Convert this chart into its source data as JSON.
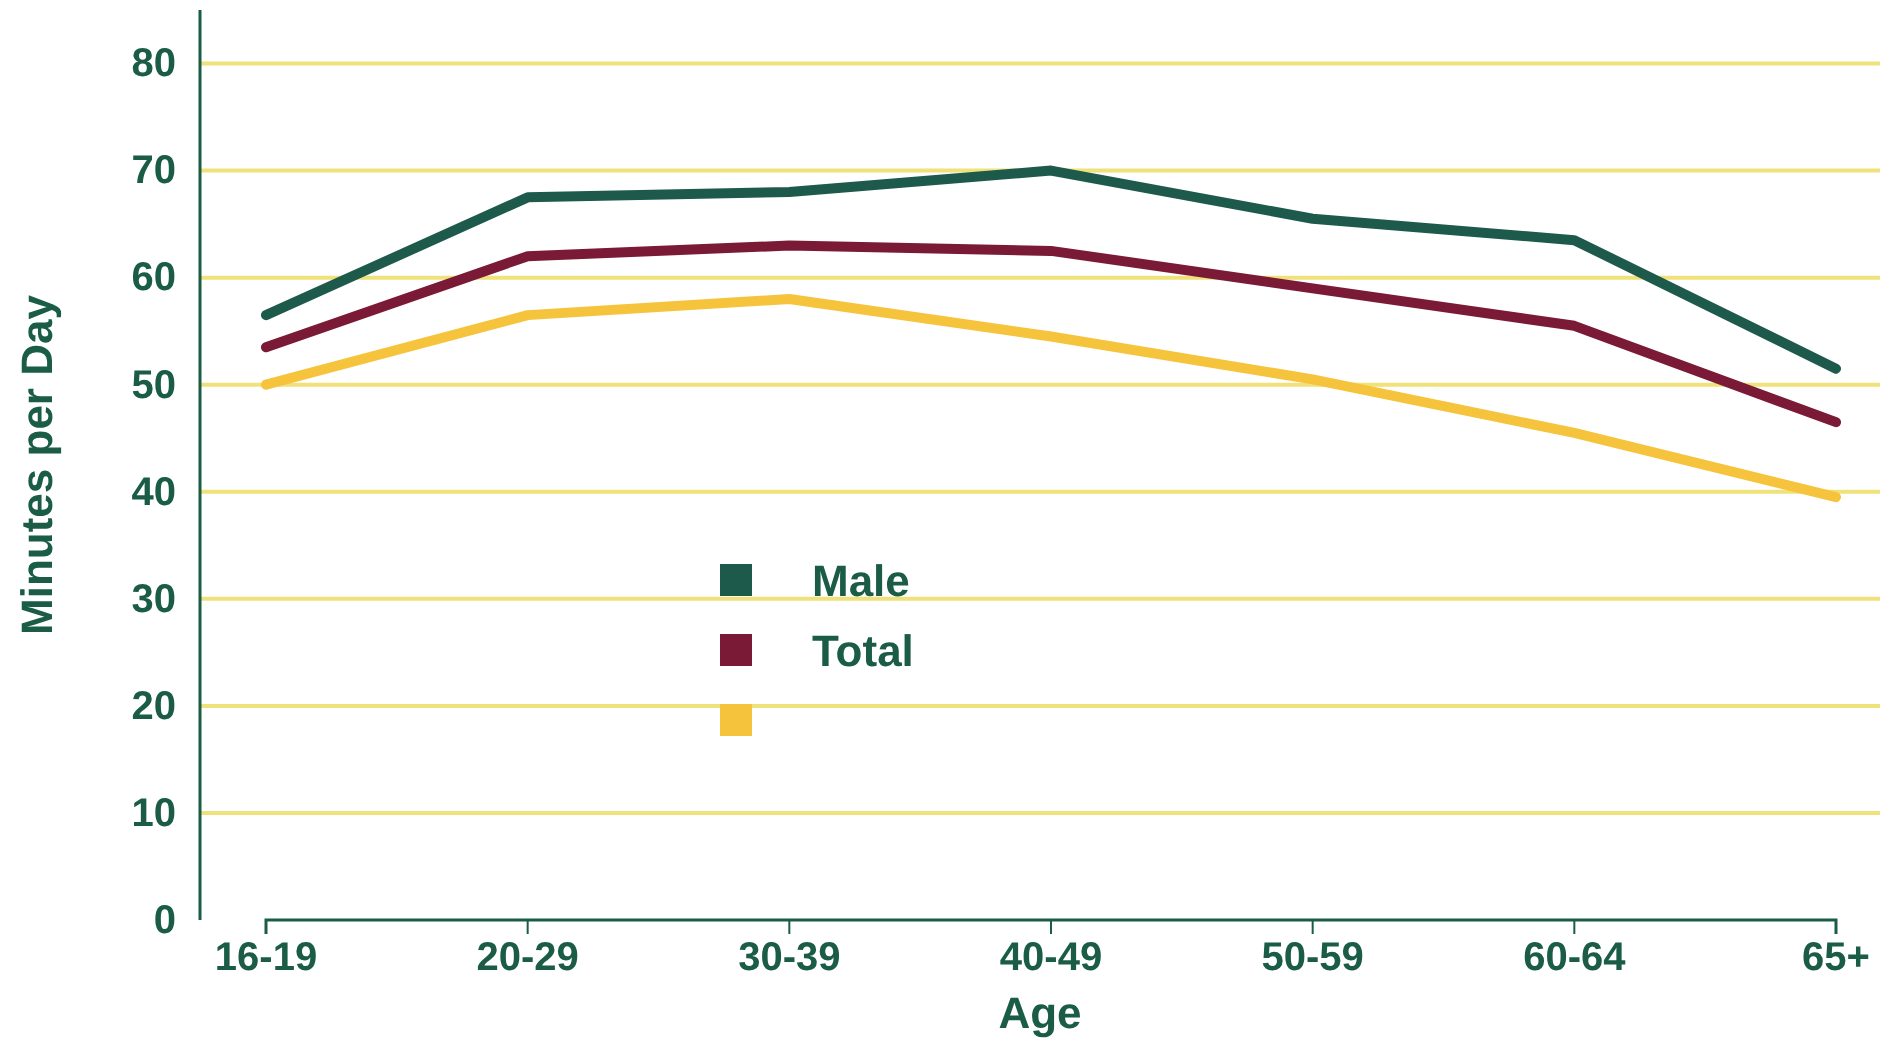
{
  "chart_data": {
    "type": "line",
    "xlabel": "Age",
    "ylabel": "Minutes per Day",
    "categories": [
      "16-19",
      "20-29",
      "30-39",
      "40-49",
      "50-59",
      "60-64",
      "65+"
    ],
    "series": [
      {
        "name": "Male",
        "color": "#1d5a4b",
        "values": [
          56.5,
          67.5,
          68,
          70,
          65.5,
          63.5,
          51.5
        ]
      },
      {
        "name": "Total",
        "color": "#7b1a36",
        "values": [
          53.5,
          62,
          63,
          62.5,
          59,
          55.5,
          46.5
        ]
      },
      {
        "color": "#f5c43c",
        "values": [
          50,
          56.5,
          58,
          54.5,
          50.5,
          45.5,
          39.5
        ]
      }
    ],
    "ylim": [
      0,
      85
    ],
    "yticks": [
      0,
      10,
      20,
      30,
      40,
      50,
      60,
      70,
      80
    ],
    "grid": "y",
    "legend": "center left",
    "marker": "none",
    "line_style": "solid"
  }
}
